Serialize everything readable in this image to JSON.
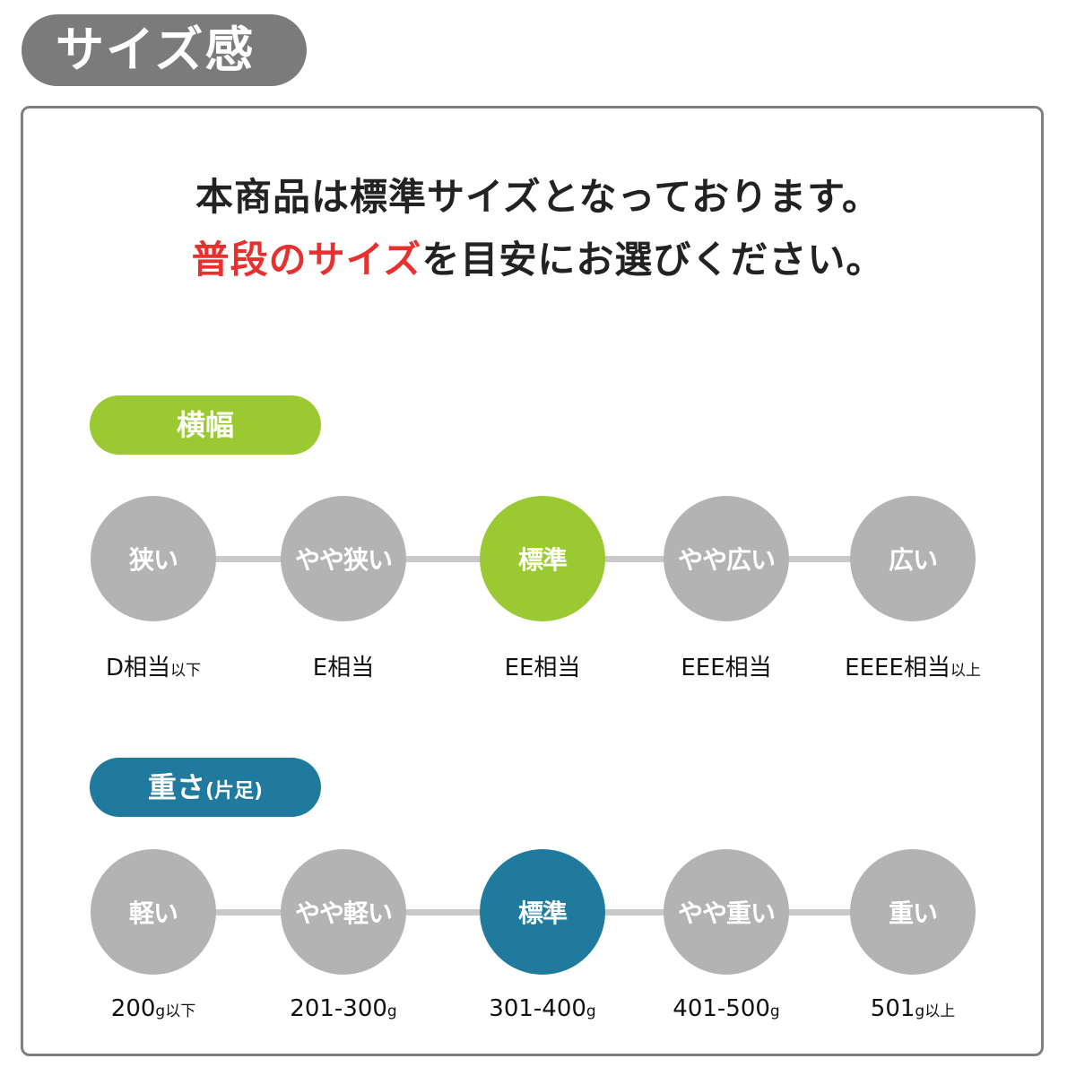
{
  "header": {
    "title": "サイズ感",
    "color": "#7b7b7b"
  },
  "lead": {
    "line1": "本商品は標準サイズとなっております。",
    "line2_highlight": "普段のサイズ",
    "line2_rest": "を目安にお選びください。",
    "highlight_color": "#e8302f"
  },
  "width_scale": {
    "title": "横幅",
    "accent": "#9bc932",
    "selected_index": 2,
    "steps": [
      {
        "label": "狭い",
        "value": "D相当",
        "suffix": "以下"
      },
      {
        "label": "やや狭い",
        "value": "E相当",
        "suffix": ""
      },
      {
        "label": "標準",
        "value": "EE相当",
        "suffix": ""
      },
      {
        "label": "やや広い",
        "value": "EEE相当",
        "suffix": ""
      },
      {
        "label": "広い",
        "value": "EEEE相当",
        "suffix": "以上"
      }
    ]
  },
  "weight_scale": {
    "title": "重さ",
    "title_note": "(片足)",
    "accent": "#1f7a9e",
    "selected_index": 2,
    "steps": [
      {
        "label": "軽い",
        "value": "200",
        "unit": "g",
        "suffix": "以下"
      },
      {
        "label": "やや軽い",
        "value": "201-300",
        "unit": "g",
        "suffix": ""
      },
      {
        "label": "標準",
        "value": "301-400",
        "unit": "g",
        "suffix": ""
      },
      {
        "label": "やや重い",
        "value": "401-500",
        "unit": "g",
        "suffix": ""
      },
      {
        "label": "重い",
        "value": "501",
        "unit": "g",
        "suffix": "以上"
      }
    ]
  }
}
